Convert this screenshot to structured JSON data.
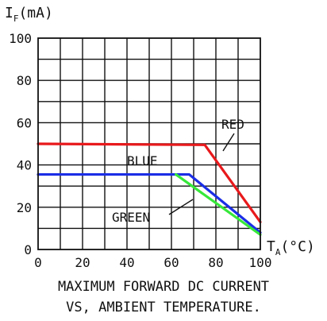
{
  "chart_data": {
    "type": "line",
    "y_axis": {
      "symbol": "I",
      "subscript": "F",
      "unit": "(mA)"
    },
    "x_axis": {
      "symbol": "T",
      "subscript": "A",
      "unit": "(°C)"
    },
    "xlim": [
      0,
      100
    ],
    "ylim": [
      0,
      100
    ],
    "x_ticks": [
      0,
      20,
      40,
      60,
      80,
      100
    ],
    "y_ticks": [
      0,
      20,
      40,
      60,
      80,
      100
    ],
    "grid": true,
    "series": [
      {
        "name": "RED",
        "color": "#e8191c",
        "points": [
          [
            0,
            50
          ],
          [
            75,
            49.5
          ],
          [
            100,
            13
          ]
        ]
      },
      {
        "name": "BLUE",
        "color": "#1b2ee6",
        "points": [
          [
            0,
            35.5
          ],
          [
            68,
            35.5
          ],
          [
            100,
            8
          ]
        ]
      },
      {
        "name": "GREEN",
        "color": "#36e83a",
        "points": [
          [
            62,
            35.5
          ],
          [
            100,
            7
          ]
        ]
      }
    ],
    "series_labels": [
      "RED",
      "BLUE",
      "GREEN"
    ],
    "caption": [
      "MAXIMUM FORWARD DC CURRENT",
      "VS, AMBIENT TEMPERATURE."
    ]
  }
}
